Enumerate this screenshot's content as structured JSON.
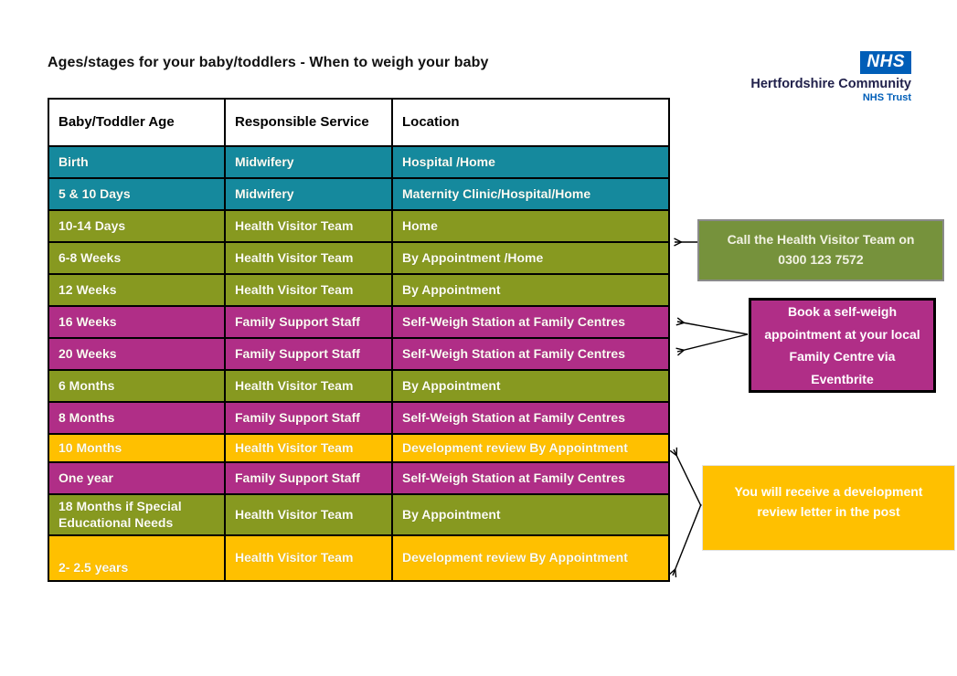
{
  "page": {
    "title": "Ages/stages for your baby/toddlers - When to weigh your baby"
  },
  "logo": {
    "nhs": "NHS",
    "org": "Hertfordshire Community",
    "sub": "NHS Trust",
    "nhs_blue": "#005EB8"
  },
  "palette": {
    "teal": "#15899D",
    "olive": "#879920",
    "magenta": "#B02E87",
    "amber": "#FFC000",
    "callout_green": "#76923C"
  },
  "table": {
    "headers": [
      "Baby/Toddler Age",
      "Responsible Service",
      "Location"
    ],
    "rows": [
      {
        "age": "Birth",
        "service": "Midwifery",
        "location": "Hospital /Home",
        "theme": "teal"
      },
      {
        "age": "5 & 10 Days",
        "service": "Midwifery",
        "location": "Maternity Clinic/Hospital/Home",
        "theme": "teal"
      },
      {
        "age": "10-14 Days",
        "service": "Health Visitor Team",
        "location": "Home",
        "theme": "olive"
      },
      {
        "age": "6-8 Weeks",
        "service": "Health Visitor Team",
        "location": "By Appointment /Home",
        "theme": "olive"
      },
      {
        "age": "12 Weeks",
        "service": "Health Visitor Team",
        "location": "By Appointment",
        "theme": "olive"
      },
      {
        "age": "16 Weeks",
        "service": "Family Support Staff",
        "location": "Self-Weigh Station at Family Centres",
        "theme": "magenta"
      },
      {
        "age": "20 Weeks",
        "service": "Family Support Staff",
        "location": "Self-Weigh Station at Family Centres",
        "theme": "magenta"
      },
      {
        "age": "6 Months",
        "service": "Health Visitor Team",
        "location": "By Appointment",
        "theme": "olive"
      },
      {
        "age": "8 Months",
        "service": "Family Support Staff",
        "location": "Self-Weigh Station at Family Centres",
        "theme": "magenta"
      },
      {
        "age": "10 Months",
        "service": "Health Visitor Team",
        "location": "Development review By Appointment",
        "theme": "amber"
      },
      {
        "age": "One year",
        "service": "Family Support Staff",
        "location": "Self-Weigh Station at Family Centres",
        "theme": "magenta"
      },
      {
        "age": "18 Months if Special Educational Needs",
        "service": "Health Visitor Team",
        "location": "By Appointment",
        "theme": "olive"
      },
      {
        "age": "2- 2.5 years",
        "service": "Health Visitor Team",
        "location": "Development review By Appointment",
        "theme": "amber"
      }
    ]
  },
  "callouts": [
    {
      "text": "Call the Health Visitor Team on 0300 123 7572",
      "theme": "callout_green"
    },
    {
      "text": "Book a self-weigh appointment at your local Family Centre via Eventbrite",
      "theme": "magenta"
    },
    {
      "text": "You will receive a development review letter in the post",
      "theme": "amber"
    }
  ]
}
